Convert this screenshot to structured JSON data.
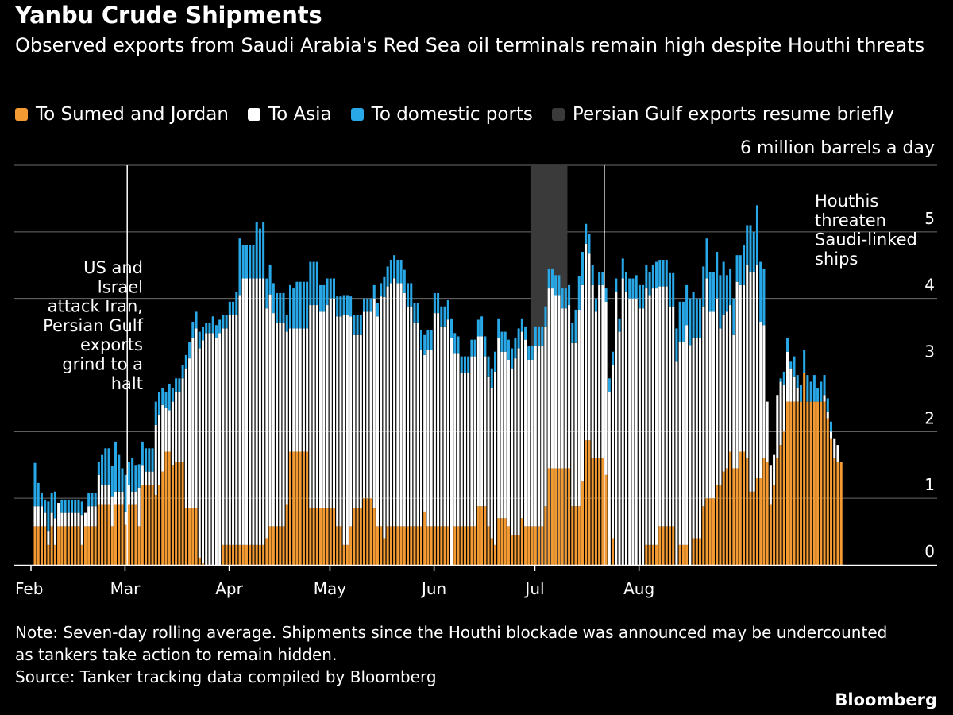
{
  "header": {
    "title": "Yanbu Crude Shipments",
    "subtitle": "Observed exports from Saudi Arabia's Red Sea oil terminals remain high despite Houthi threats"
  },
  "legend": [
    {
      "label": "To Sumed and Jordan",
      "color": "#f39b32"
    },
    {
      "label": "To Asia",
      "color": "#ffffff"
    },
    {
      "label": "To domestic ports",
      "color": "#29a8e8"
    },
    {
      "label": "Persian Gulf exports resume briefly",
      "color": "#3a3a3a"
    }
  ],
  "unit_label": "6 million barrels a day",
  "footer": {
    "note": "Note: Seven-day rolling average. Shipments since the Houthi blockade was announced may be undercounted as tankers take action to remain hidden.",
    "source": "Source: Tanker tracking data compiled by Bloomberg",
    "brand": "Bloomberg"
  },
  "chart_data": {
    "type": "bar",
    "stacked": true,
    "x_unit": "day",
    "x_start": "Feb 1",
    "x_ticks": [
      "Feb",
      "Mar",
      "Apr",
      "May",
      "Jun",
      "Jul",
      "Aug"
    ],
    "y_ticks": [
      0,
      1,
      2,
      3,
      4,
      5
    ],
    "ylim": [
      0,
      6
    ],
    "legend_position": "top",
    "grid": true,
    "annotations": [
      {
        "label": "US and Israel attack Iran, Persian Gulf exports grind to a halt",
        "date": "Feb 28"
      },
      {
        "label": "Houthis threaten Saudi-linked ships",
        "date": "Jul 20"
      }
    ],
    "shaded_period": {
      "label": "Persian Gulf exports resume briefly",
      "start": "Jun 29",
      "end": "Jul 9"
    },
    "series": [
      {
        "name": "To Sumed and Jordan",
        "color": "#f39b32",
        "values": [
          0.58,
          0.58,
          0.58,
          0.58,
          0.3,
          0.58,
          0.3,
          0.58,
          0.58,
          0.58,
          0.58,
          0.58,
          0.58,
          0.58,
          0.3,
          0.58,
          0.58,
          0.58,
          0.58,
          0.9,
          0.9,
          0.9,
          0.9,
          0.58,
          0.9,
          0.9,
          0.9,
          0.6,
          0.9,
          0.9,
          0.9,
          0.58,
          1.2,
          1.2,
          1.2,
          1.2,
          1.05,
          1.2,
          1.4,
          1.7,
          1.7,
          1.5,
          1.55,
          1.55,
          1.55,
          0.85,
          0.85,
          0.85,
          0.85,
          0.1,
          0.02,
          0.0,
          0.0,
          0.0,
          0.0,
          0.0,
          0.3,
          0.3,
          0.3,
          0.3,
          0.3,
          0.3,
          0.3,
          0.3,
          0.3,
          0.3,
          0.3,
          0.3,
          0.3,
          0.4,
          0.58,
          0.58,
          0.58,
          0.58,
          0.58,
          0.9,
          1.7,
          1.7,
          1.7,
          1.7,
          1.7,
          1.7,
          0.85,
          0.85,
          0.85,
          0.85,
          0.85,
          0.85,
          0.85,
          0.85,
          0.58,
          0.58,
          0.3,
          0.3,
          0.58,
          0.85,
          0.85,
          0.85,
          1.0,
          1.0,
          1.0,
          0.85,
          0.58,
          0.58,
          0.4,
          0.58,
          0.58,
          0.58,
          0.58,
          0.58,
          0.58,
          0.58,
          0.58,
          0.58,
          0.58,
          0.58,
          0.8,
          0.58,
          0.58,
          0.58,
          0.58,
          0.58,
          0.58,
          0.58,
          0.0,
          0.58,
          0.58,
          0.58,
          0.58,
          0.58,
          0.58,
          0.58,
          0.88,
          0.88,
          0.88,
          0.58,
          0.4,
          0.3,
          0.7,
          0.7,
          0.7,
          0.58,
          0.45,
          0.45,
          0.45,
          0.7,
          0.58,
          0.58,
          0.58,
          0.58,
          0.58,
          0.58,
          0.88,
          1.45,
          1.45,
          1.45,
          1.45,
          1.45,
          1.45,
          1.45,
          0.88,
          0.88,
          0.88,
          1.25,
          1.87,
          1.87,
          1.6,
          1.6,
          1.6,
          1.6,
          1.35,
          0.0,
          0.4,
          0.0,
          0.0,
          0.0,
          0.0,
          0.0,
          0.0,
          0.0,
          0.0,
          0.0,
          0.3,
          0.3,
          0.3,
          0.3,
          0.58,
          0.58,
          0.58,
          0.58,
          0.58,
          0.0,
          0.3,
          0.3,
          0.3,
          0.0,
          0.4,
          0.4,
          0.4,
          0.88,
          1.0,
          1.0,
          1.0,
          1.2,
          1.2,
          1.4,
          1.45,
          1.7,
          1.45,
          1.45,
          1.7,
          1.7,
          1.6,
          1.1,
          1.1,
          1.3,
          1.3,
          1.6,
          1.55,
          0.9,
          1.2,
          1.6,
          1.8,
          2.0,
          2.45,
          2.45,
          2.45,
          2.45,
          2.45,
          2.88,
          2.45,
          2.45,
          2.45,
          2.45,
          2.45,
          2.45,
          2.2,
          1.9,
          1.6,
          1.55,
          1.55
        ]
      },
      {
        "name": "To Asia",
        "color": "#ffffff",
        "values": [
          0.3,
          0.3,
          0.3,
          0.2,
          0.2,
          0.2,
          0.4,
          0.35,
          0.2,
          0.2,
          0.2,
          0.2,
          0.2,
          0.2,
          0.45,
          0.2,
          0.3,
          0.3,
          0.3,
          0.45,
          0.3,
          0.3,
          0.3,
          0.45,
          0.2,
          0.2,
          0.2,
          0.2,
          0.3,
          0.2,
          0.2,
          0.58,
          0.3,
          0.2,
          0.2,
          0.2,
          1.05,
          1.05,
          1.0,
          0.65,
          0.62,
          0.95,
          1.05,
          1.05,
          1.25,
          2.1,
          2.25,
          2.55,
          2.7,
          3.15,
          3.35,
          3.48,
          3.48,
          3.48,
          3.4,
          3.48,
          3.25,
          3.25,
          3.45,
          3.45,
          3.45,
          3.75,
          4.0,
          4.0,
          4.0,
          4.0,
          4.0,
          4.0,
          4.0,
          3.45,
          3.48,
          3.2,
          3.05,
          3.05,
          3.05,
          2.6,
          1.85,
          1.85,
          1.85,
          1.85,
          1.85,
          1.85,
          3.05,
          3.05,
          3.05,
          2.95,
          2.95,
          3.05,
          3.15,
          3.15,
          3.15,
          3.15,
          3.45,
          3.45,
          3.15,
          2.6,
          2.6,
          2.6,
          2.8,
          2.8,
          2.8,
          3.15,
          3.15,
          3.45,
          3.62,
          3.6,
          3.65,
          3.72,
          3.65,
          3.65,
          3.5,
          3.3,
          3.3,
          3.05,
          3.05,
          2.65,
          2.35,
          2.65,
          2.65,
          3.2,
          3.2,
          3.0,
          3.0,
          3.1,
          3.4,
          2.6,
          2.6,
          2.3,
          2.3,
          2.3,
          2.55,
          2.55,
          2.55,
          2.55,
          2.25,
          2.25,
          2.25,
          2.6,
          2.7,
          2.5,
          2.5,
          2.5,
          2.5,
          2.65,
          2.8,
          2.8,
          2.8,
          2.5,
          2.5,
          2.7,
          2.7,
          2.7,
          2.7,
          2.7,
          2.7,
          2.6,
          2.6,
          2.4,
          2.4,
          2.45,
          2.45,
          2.45,
          2.95,
          2.95,
          2.95,
          2.8,
          2.6,
          2.2,
          2.6,
          2.6,
          2.6,
          2.6,
          2.6,
          4.1,
          3.5,
          4.3,
          4.1,
          4.0,
          4.0,
          4.0,
          3.85,
          3.85,
          3.85,
          3.75,
          3.85,
          3.85,
          3.6,
          3.6,
          3.6,
          3.3,
          3.3,
          3.05,
          3.05,
          3.05,
          3.3,
          3.3,
          3.0,
          3.0,
          3.0,
          3.0,
          3.3,
          2.8,
          2.8,
          2.8,
          2.35,
          2.35,
          2.35,
          2.2,
          2.0,
          2.8,
          2.5,
          2.5,
          2.9,
          3.3,
          3.3,
          3.2,
          2.35,
          2.0,
          0.9,
          0.6,
          0.45,
          0.95,
          0.95,
          0.7,
          0.75,
          0.5,
          0.38,
          0.2,
          0.0,
          0.0,
          0.0,
          0.0,
          0.0,
          0.0,
          0.0,
          0.1,
          0.1,
          0.1,
          0.3,
          0.25,
          0.0,
          0.0
        ]
      },
      {
        "name": "To domestic ports",
        "color": "#29a8e8",
        "values": [
          0.65,
          0.35,
          0.2,
          0.2,
          0.45,
          0.3,
          0.4,
          0.0,
          0.2,
          0.2,
          0.2,
          0.2,
          0.2,
          0.2,
          0.2,
          0.0,
          0.2,
          0.2,
          0.2,
          0.2,
          0.45,
          0.55,
          0.55,
          0.45,
          0.75,
          0.55,
          0.35,
          0.55,
          0.35,
          0.5,
          0.4,
          0.35,
          0.35,
          0.35,
          0.35,
          0.35,
          0.35,
          0.35,
          0.25,
          0.25,
          0.4,
          0.2,
          0.2,
          0.2,
          0.2,
          0.2,
          0.25,
          0.25,
          0.25,
          0.25,
          0.2,
          0.15,
          0.15,
          0.25,
          0.2,
          0.2,
          0.2,
          0.2,
          0.2,
          0.2,
          0.35,
          0.85,
          0.5,
          0.5,
          0.5,
          0.5,
          0.85,
          0.75,
          0.85,
          0.45,
          0.45,
          0.45,
          0.45,
          0.45,
          0.45,
          0.25,
          0.65,
          0.6,
          0.7,
          0.7,
          0.7,
          0.7,
          0.65,
          0.65,
          0.65,
          0.4,
          0.4,
          0.4,
          0.3,
          0.3,
          0.3,
          0.3,
          0.3,
          0.3,
          0.3,
          0.3,
          0.3,
          0.3,
          0.2,
          0.2,
          0.2,
          0.2,
          0.2,
          0.2,
          0.3,
          0.3,
          0.35,
          0.35,
          0.35,
          0.35,
          0.35,
          0.35,
          0.35,
          0.3,
          0.3,
          0.3,
          0.3,
          0.3,
          0.3,
          0.3,
          0.3,
          0.3,
          0.3,
          0.3,
          0.3,
          0.3,
          0.25,
          0.25,
          0.25,
          0.25,
          0.25,
          0.25,
          0.25,
          0.3,
          0.3,
          0.3,
          0.3,
          0.3,
          0.3,
          0.3,
          0.3,
          0.3,
          0.3,
          0.3,
          0.3,
          0.2,
          0.2,
          0.2,
          0.2,
          0.3,
          0.3,
          0.3,
          0.3,
          0.3,
          0.3,
          0.3,
          0.3,
          0.3,
          0.3,
          0.3,
          0.3,
          0.5,
          0.5,
          0.5,
          0.3,
          0.3,
          0.3,
          0.2,
          0.2,
          0.2,
          0.2,
          0.2,
          0.2,
          0.2,
          0.2,
          0.3,
          0.3,
          0.3,
          0.3,
          0.35,
          0.35,
          0.35,
          0.35,
          0.35,
          0.35,
          0.4,
          0.4,
          0.4,
          0.4,
          0.5,
          0.5,
          0.5,
          0.6,
          0.6,
          0.6,
          0.7,
          0.7,
          0.6,
          0.6,
          0.6,
          0.6,
          0.6,
          0.6,
          0.7,
          0.8,
          0.8,
          0.55,
          0.55,
          0.55,
          0.4,
          0.45,
          0.6,
          0.6,
          0.7,
          0.6,
          0.9,
          0.9,
          0.85,
          0.0,
          0.0,
          0.0,
          0.0,
          0.05,
          0.2,
          0.2,
          0.1,
          0.3,
          0.2,
          0.25,
          0.35,
          0.4,
          0.3,
          0.4,
          0.2,
          0.3,
          0.3,
          0.2,
          0.15,
          0.0,
          0.0,
          0.0,
          0.0,
          0.0
        ]
      }
    ]
  }
}
